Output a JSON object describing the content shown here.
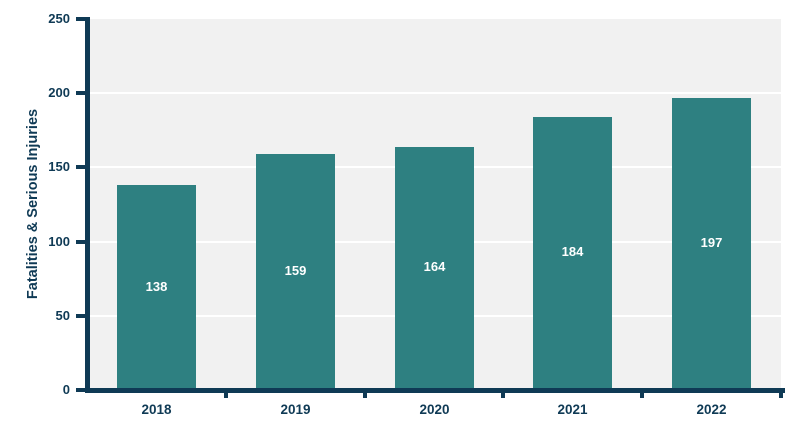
{
  "chart_data": {
    "type": "bar",
    "title": "",
    "categories": [
      "2018",
      "2019",
      "2020",
      "2021",
      "2022"
    ],
    "values": [
      138,
      159,
      164,
      184,
      197
    ],
    "xlabel": "",
    "ylabel": "Fatalities & Serious Injuries",
    "ylim": [
      0,
      250
    ],
    "yticks": [
      0,
      50,
      100,
      150,
      200,
      250
    ],
    "grid": "horizontal",
    "legend": "none",
    "value_label_placement": "centered inside bars",
    "colors": {
      "bar": "#2e8081",
      "axis_and_text": "#0f3a55",
      "plot_background": "#f1f1f1",
      "gridline": "#ffffff",
      "value_label": "#ffffff",
      "page_background": "#ffffff"
    }
  }
}
